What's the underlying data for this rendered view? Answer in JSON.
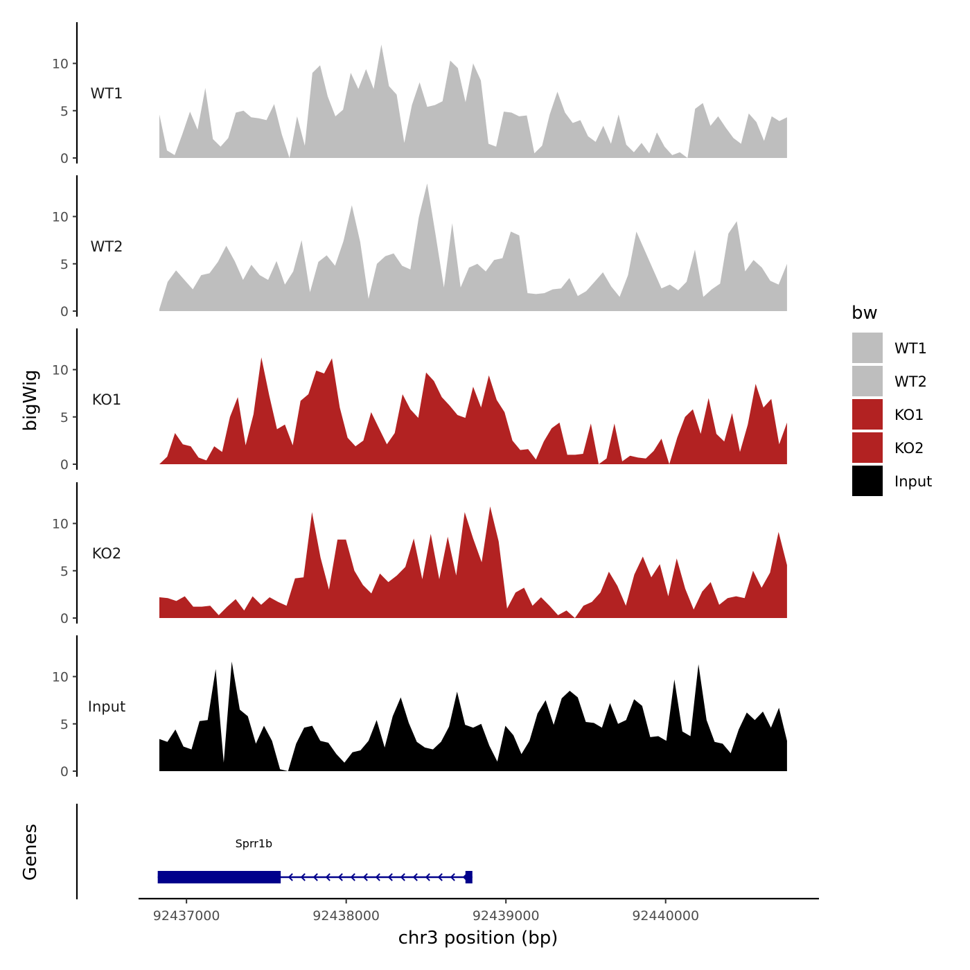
{
  "chart_data": {
    "type": "area",
    "title": "",
    "ylabel": "bigWig",
    "genes_label": "Genes",
    "xlabel": "chr3 position (bp)",
    "xlim": [
      92436700,
      92440960
    ],
    "ylim": [
      0,
      14
    ],
    "data_range": [
      92436830,
      92440760
    ],
    "x_ticks": [
      92437000,
      92438000,
      92439000,
      92440000
    ],
    "x_tick_labels": [
      "92437000",
      "92438000",
      "92439000",
      "92440000"
    ],
    "y_ticks": [
      0,
      5,
      10
    ],
    "y_tick_labels": [
      "0",
      "5",
      "10"
    ],
    "grid": false,
    "legend": {
      "title": "bw",
      "position": "right",
      "entries": [
        {
          "label": "WT1",
          "color": "#bebebe"
        },
        {
          "label": "WT2",
          "color": "#bebebe"
        },
        {
          "label": "KO1",
          "color": "#b22222"
        },
        {
          "label": "KO2",
          "color": "#b22222"
        },
        {
          "label": "Input",
          "color": "#000000"
        }
      ]
    },
    "series": [
      {
        "name": "WT1",
        "color": "#bebebe",
        "values": [
          4.6,
          0.8,
          0.3,
          2.5,
          4.9,
          3.0,
          7.4,
          2.0,
          1.2,
          2.1,
          4.8,
          5.0,
          4.3,
          4.2,
          4.0,
          5.7,
          2.5,
          0.0,
          4.4,
          1.3,
          9.0,
          9.8,
          6.5,
          4.4,
          5.1,
          9.0,
          7.3,
          9.4,
          7.3,
          12.0,
          7.6,
          6.7,
          1.6,
          5.6,
          8.0,
          5.4,
          5.6,
          6.0,
          10.3,
          9.5,
          5.9,
          10.0,
          8.2,
          1.5,
          1.2,
          4.9,
          4.8,
          4.4,
          4.5,
          0.5,
          1.3,
          4.6,
          7.0,
          4.8,
          3.7,
          4.0,
          2.3,
          1.7,
          3.4,
          1.5,
          4.6,
          1.4,
          0.6,
          1.6,
          0.5,
          2.7,
          1.2,
          0.3,
          0.6,
          0.0,
          5.2,
          5.8,
          3.4,
          4.4,
          3.2,
          2.1,
          1.5,
          4.7,
          3.8,
          1.8,
          4.4,
          3.9,
          4.3
        ]
      },
      {
        "name": "WT2",
        "color": "#bebebe",
        "values": [
          0.2,
          3.1,
          4.3,
          3.3,
          2.3,
          3.8,
          4.0,
          5.2,
          6.9,
          5.3,
          3.3,
          4.9,
          3.8,
          3.3,
          5.3,
          2.8,
          4.2,
          7.5,
          2.0,
          5.2,
          5.9,
          4.8,
          7.4,
          11.2,
          7.3,
          1.3,
          5.0,
          5.8,
          6.1,
          4.8,
          4.4,
          9.9,
          13.5,
          8.1,
          2.5,
          9.3,
          2.5,
          4.6,
          5.0,
          4.2,
          5.4,
          5.6,
          8.4,
          8.0,
          1.9,
          1.8,
          1.9,
          2.3,
          2.4,
          3.5,
          1.6,
          2.1,
          3.1,
          4.1,
          2.6,
          1.5,
          3.8,
          8.4,
          6.4,
          4.4,
          2.4,
          2.8,
          2.2,
          3.1,
          6.5,
          1.5,
          2.3,
          2.9,
          8.2,
          9.5,
          4.2,
          5.4,
          4.6,
          3.2,
          2.8,
          5.0
        ]
      },
      {
        "name": "KO1",
        "color": "#b22222",
        "values": [
          0.0,
          0.8,
          3.3,
          2.1,
          1.9,
          0.7,
          0.4,
          1.9,
          1.3,
          5.0,
          7.1,
          2.0,
          5.3,
          11.3,
          7.3,
          3.7,
          4.2,
          2.0,
          6.7,
          7.4,
          9.9,
          9.6,
          11.2,
          6.0,
          2.8,
          1.9,
          2.5,
          5.5,
          3.8,
          2.1,
          3.3,
          7.4,
          5.8,
          4.9,
          9.7,
          8.8,
          7.1,
          6.2,
          5.2,
          4.9,
          8.2,
          6.0,
          9.4,
          6.8,
          5.5,
          2.5,
          1.5,
          1.6,
          0.5,
          2.4,
          3.8,
          4.4,
          1.0,
          1.0,
          1.1,
          4.3,
          0.0,
          0.6,
          4.3,
          0.3,
          0.9,
          0.7,
          0.6,
          1.4,
          2.7,
          0.0,
          2.8,
          5.0,
          5.8,
          3.2,
          7.0,
          3.2,
          2.4,
          5.4,
          1.3,
          4.2,
          8.5,
          6.0,
          6.9,
          2.1,
          4.4
        ]
      },
      {
        "name": "KO2",
        "color": "#b22222",
        "values": [
          2.2,
          2.1,
          1.8,
          2.3,
          1.2,
          1.2,
          1.3,
          0.3,
          1.2,
          2.0,
          0.8,
          2.3,
          1.4,
          2.2,
          1.7,
          1.3,
          4.2,
          4.3,
          11.2,
          6.4,
          3.0,
          8.3,
          8.3,
          5.0,
          3.5,
          2.6,
          4.7,
          3.8,
          4.5,
          5.4,
          8.4,
          4.1,
          8.9,
          4.1,
          8.6,
          4.5,
          11.2,
          8.4,
          5.9,
          11.8,
          8.1,
          1.0,
          2.7,
          3.2,
          1.3,
          2.2,
          1.3,
          0.3,
          0.8,
          0.0,
          1.3,
          1.7,
          2.7,
          4.9,
          3.4,
          1.3,
          4.6,
          6.5,
          4.3,
          5.7,
          2.3,
          6.3,
          3.1,
          0.9,
          2.8,
          3.8,
          1.4,
          2.1,
          2.3,
          2.1,
          5.0,
          3.2,
          4.8,
          9.1,
          5.6
        ]
      },
      {
        "name": "Input",
        "color": "#000000",
        "values": [
          3.4,
          3.1,
          4.4,
          2.6,
          2.3,
          5.3,
          5.4,
          10.8,
          0.9,
          11.6,
          6.5,
          5.8,
          2.9,
          4.8,
          3.2,
          0.2,
          0.0,
          2.9,
          4.6,
          4.8,
          3.2,
          3.0,
          1.8,
          0.9,
          2.0,
          2.2,
          3.2,
          5.4,
          2.5,
          5.8,
          7.8,
          5.1,
          3.1,
          2.5,
          2.3,
          3.1,
          4.7,
          8.4,
          4.9,
          4.6,
          5.0,
          2.7,
          1.0,
          4.8,
          3.8,
          1.8,
          3.2,
          6.1,
          7.5,
          4.9,
          7.7,
          8.5,
          7.8,
          5.2,
          5.1,
          4.6,
          7.2,
          5.0,
          5.4,
          7.6,
          6.9,
          3.6,
          3.7,
          3.2,
          9.7,
          4.2,
          3.7,
          11.3,
          5.4,
          3.1,
          2.9,
          1.9,
          4.4,
          6.2,
          5.4,
          6.3,
          4.6,
          6.7,
          3.2
        ]
      }
    ],
    "gene": {
      "name": "Sprr1b",
      "strand": "-",
      "start": 92436820,
      "end": 92438790,
      "thick_start": 92436820,
      "thick_end": 92437590,
      "color": "#00008b"
    }
  }
}
